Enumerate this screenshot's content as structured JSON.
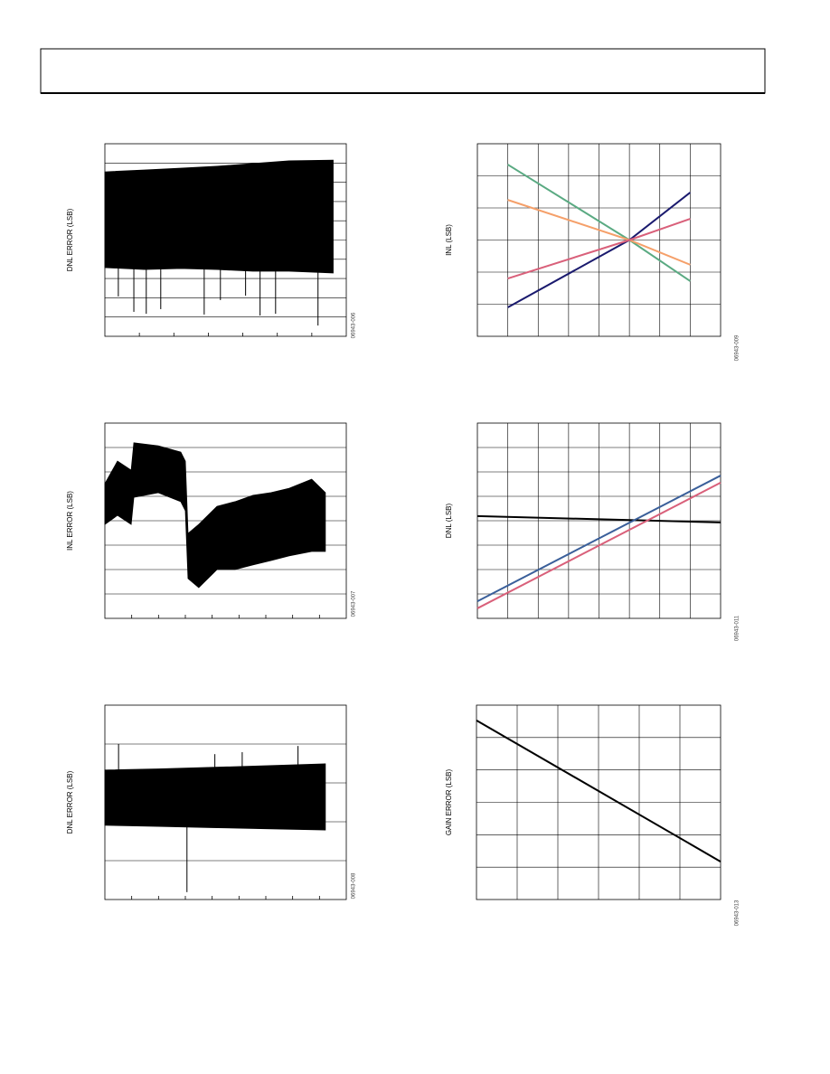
{
  "chart_data": [
    {
      "type": "band",
      "y_label": "DNL ERROR (LSB)",
      "figure_id": "06943-006",
      "xlim": [
        0,
        7
      ],
      "xticks": [
        1,
        2,
        3,
        4,
        5,
        6
      ],
      "ylim": [
        0,
        10
      ],
      "yticks": [
        1,
        2,
        3,
        4,
        5,
        6,
        7,
        8,
        9
      ],
      "xgrid": false,
      "ygrid": true,
      "x": [
        0,
        1.15,
        2.2,
        3.25,
        4.29,
        5.34,
        6.62
      ],
      "series": [
        {
          "color": "#000000",
          "values": [
            8.54,
            8.64,
            8.73,
            8.83,
            8.97,
            9.11,
            9.15
          ]
        },
        {
          "color": "#000000",
          "values": [
            3.57,
            3.47,
            3.52,
            3.47,
            3.38,
            3.38,
            3.29
          ]
        }
      ],
      "spikes": {
        "x": [
          0.39,
          0.84,
          1.2,
          1.62,
          2.88,
          3.35,
          4.08,
          4.5,
          4.95,
          6.18
        ],
        "values": [
          2.07,
          1.27,
          1.17,
          1.41,
          1.13,
          1.88,
          2.11,
          1.08,
          1.17,
          0.56
        ]
      }
    },
    {
      "type": "line",
      "y_label": "INL (LSB)",
      "figure_id": "06943-009",
      "xlim": [
        0,
        8
      ],
      "xticks": [
        1,
        2,
        3,
        4,
        5,
        6,
        7
      ],
      "ylim": [
        0,
        6
      ],
      "yticks": [
        1,
        2,
        3,
        4,
        5
      ],
      "xgrid": true,
      "ygrid": true,
      "x": [
        1,
        5,
        7
      ],
      "series": [
        {
          "color": "#1a1a6e",
          "values": [
            0.9,
            3.0,
            4.48
          ]
        },
        {
          "color": "#5aaa82",
          "values": [
            5.35,
            3.0,
            1.72
          ]
        },
        {
          "color": "#f5a06a",
          "values": [
            4.25,
            3.0,
            2.23
          ]
        },
        {
          "color": "#d9607a",
          "values": [
            1.8,
            3.0,
            3.66
          ]
        }
      ]
    },
    {
      "type": "band",
      "y_label": "INL ERROR (LSB)",
      "figure_id": "06943-007",
      "xlim": [
        0,
        9
      ],
      "xticks": [
        1,
        2,
        3,
        4,
        5,
        6,
        7,
        8
      ],
      "ylim": [
        0,
        8
      ],
      "yticks": [
        1,
        2,
        3,
        4,
        5,
        6,
        7
      ],
      "xgrid": false,
      "ygrid": true,
      "x": [
        0,
        0.47,
        0.98,
        1.08,
        1.99,
        2.83,
        3.0,
        3.1,
        3.5,
        4.18,
        4.85,
        5.52,
        6.2,
        6.87,
        7.71,
        8.22
      ],
      "series": [
        {
          "color": "#000000",
          "values": [
            5.52,
            6.44,
            6.07,
            7.19,
            7.07,
            6.81,
            6.44,
            3.48,
            3.85,
            4.59,
            4.78,
            5.04,
            5.15,
            5.33,
            5.7,
            5.15
          ]
        },
        {
          "color": "#000000",
          "values": [
            3.85,
            4.22,
            3.85,
            4.96,
            5.15,
            4.78,
            4.41,
            1.63,
            1.26,
            2.0,
            2.0,
            2.19,
            2.37,
            2.56,
            2.74,
            2.74
          ]
        }
      ]
    },
    {
      "type": "line",
      "y_label": "DNL (LSB)",
      "figure_id": "06943-011",
      "xlim": [
        0,
        8
      ],
      "xticks": [
        1,
        2,
        3,
        4,
        5,
        6,
        7
      ],
      "ylim": [
        0,
        8
      ],
      "yticks": [
        1,
        2,
        3,
        4,
        5,
        6,
        7
      ],
      "xgrid": true,
      "ygrid": true,
      "x": [
        0,
        8
      ],
      "series": [
        {
          "color": "#000000",
          "values": [
            4.19,
            3.93
          ]
        },
        {
          "color": "#3a5f9a",
          "values": [
            0.7,
            5.85
          ]
        },
        {
          "color": "#d9607a",
          "values": [
            0.41,
            5.56
          ]
        }
      ]
    },
    {
      "type": "band",
      "y_label": "DNL ERROR (LSB)",
      "figure_id": "06943-008",
      "xlim": [
        0,
        9
      ],
      "xticks": [
        1,
        2,
        3,
        4,
        5,
        6,
        7,
        8
      ],
      "ylim": [
        0,
        5
      ],
      "yticks": [
        1,
        2,
        3,
        4
      ],
      "xgrid": false,
      "ygrid": true,
      "x": [
        0,
        2,
        4,
        6,
        8.22
      ],
      "series": [
        {
          "color": "#000000",
          "values": [
            3.33,
            3.36,
            3.4,
            3.44,
            3.49
          ]
        },
        {
          "color": "#000000",
          "values": [
            1.91,
            1.88,
            1.85,
            1.82,
            1.79
          ]
        }
      ],
      "spikes": {
        "x": [
          0.51,
          3.06,
          4.1,
          5.12,
          7.2
        ],
        "values": [
          4.0,
          0.19,
          3.74,
          3.79,
          3.95
        ]
      }
    },
    {
      "type": "line",
      "y_label": "GAIN ERROR (LSB)",
      "figure_id": "06943-013",
      "xlim": [
        0,
        6
      ],
      "xticks": [
        1,
        2,
        3,
        4,
        5
      ],
      "ylim": [
        0,
        6
      ],
      "yticks": [
        1,
        2,
        3,
        4,
        5
      ],
      "xgrid": true,
      "ygrid": true,
      "x": [
        0,
        6
      ],
      "series": [
        {
          "color": "#000000",
          "values": [
            5.53,
            1.17
          ]
        }
      ]
    }
  ]
}
